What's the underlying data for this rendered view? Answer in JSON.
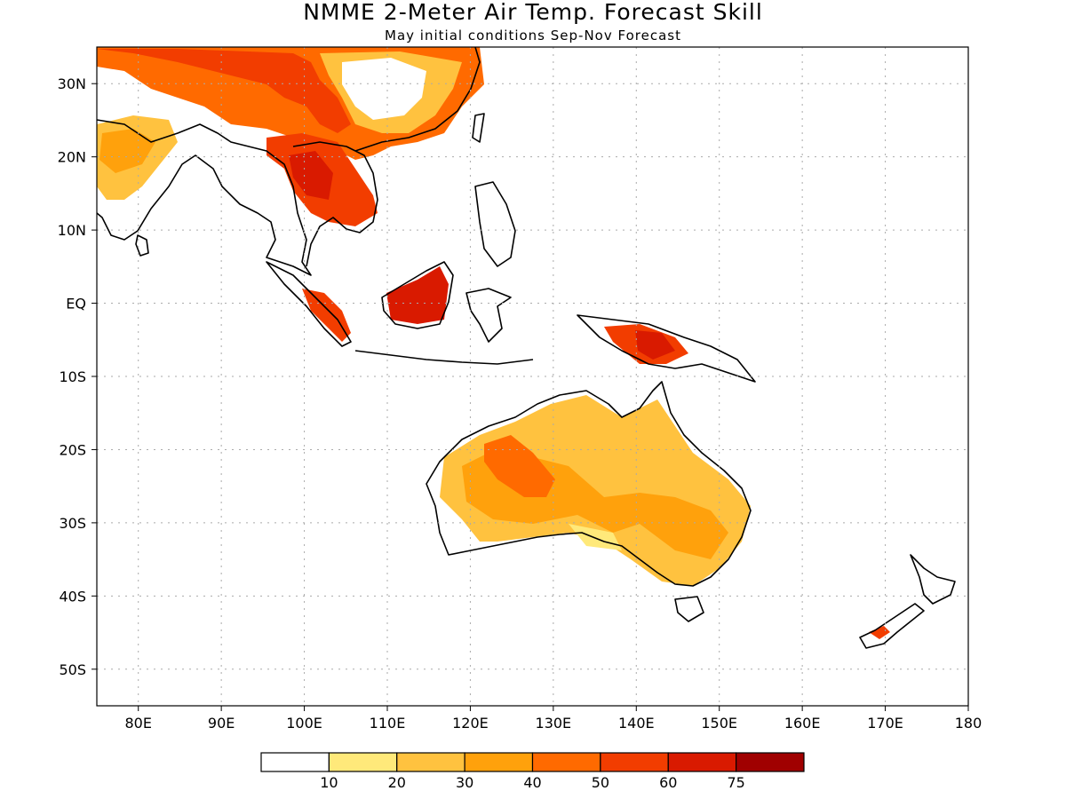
{
  "title": "NMME 2-Meter Air Temp. Forecast Skill",
  "subtitle": "May initial conditions  Sep-Nov Forecast",
  "map": {
    "lon_range": [
      75,
      180
    ],
    "lat_range": [
      -55,
      35
    ],
    "lon_ticks": [
      {
        "value": 80,
        "label": "80E"
      },
      {
        "value": 90,
        "label": "90E"
      },
      {
        "value": 100,
        "label": "100E"
      },
      {
        "value": 110,
        "label": "110E"
      },
      {
        "value": 120,
        "label": "120E"
      },
      {
        "value": 130,
        "label": "130E"
      },
      {
        "value": 140,
        "label": "140E"
      },
      {
        "value": 150,
        "label": "150E"
      },
      {
        "value": 160,
        "label": "160E"
      },
      {
        "value": 170,
        "label": "170E"
      },
      {
        "value": 180,
        "label": "180"
      }
    ],
    "lat_ticks": [
      {
        "value": 30,
        "label": "30N"
      },
      {
        "value": 20,
        "label": "20N"
      },
      {
        "value": 10,
        "label": "10N"
      },
      {
        "value": 0,
        "label": "EQ"
      },
      {
        "value": -10,
        "label": "10S"
      },
      {
        "value": -20,
        "label": "20S"
      },
      {
        "value": -30,
        "label": "30S"
      },
      {
        "value": -40,
        "label": "40S"
      },
      {
        "value": -50,
        "label": "50S"
      }
    ],
    "grid": "dotted"
  },
  "colorbar": {
    "colors": [
      "#ffffff",
      "#ffe97a",
      "#ffc23f",
      "#ffa10c",
      "#ff6a00",
      "#f23d00",
      "#d91a00",
      "#a00000"
    ],
    "labels": [
      "10",
      "20",
      "30",
      "40",
      "50",
      "60",
      "75"
    ]
  }
}
